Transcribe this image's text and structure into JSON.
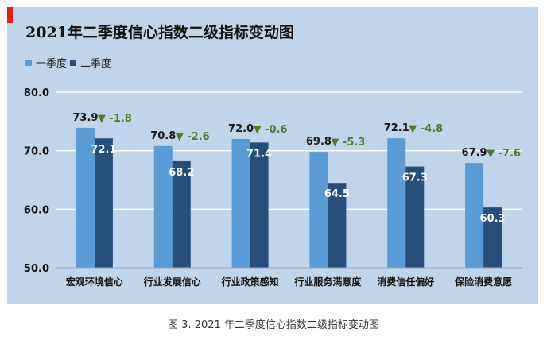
{
  "caption": "图 3. 2021 年二季度信心指数二级指标变动图",
  "colors": {
    "q1": "#5b9bd5",
    "q2": "#264e78",
    "change": "#4e7a2e",
    "grid": "#ffffff",
    "panel": "#bfd5ec"
  },
  "chart_data": {
    "type": "bar",
    "title": "2021年二季度信心指数二级指标变动图",
    "categories": [
      "宏观环境信心",
      "行业发展信心",
      "行业政策感知",
      "行业服务满意度",
      "消费信任偏好",
      "保险消费意愿"
    ],
    "series": [
      {
        "name": "一季度",
        "values": [
          73.9,
          70.8,
          72.0,
          69.8,
          72.1,
          67.9
        ]
      },
      {
        "name": "二季度",
        "values": [
          72.1,
          68.2,
          71.4,
          64.5,
          67.3,
          60.3
        ]
      }
    ],
    "value_labels": {
      "q1": [
        "73.9",
        "70.8",
        "72.0",
        "69.8",
        "72.1",
        "67.9"
      ],
      "q2": [
        "72.1",
        "68.2",
        "71.4",
        "64.5",
        "67.3",
        "60.3"
      ]
    },
    "changes": [
      "-1.8",
      "-2.6",
      "-0.6",
      "-5.3",
      "-4.8",
      "-7.6"
    ],
    "change_marker": "▼",
    "ylim": [
      50,
      80
    ],
    "yticks": [
      "50.0",
      "60.0",
      "70.0",
      "80.0"
    ],
    "legend_position": "top-left",
    "xlabel": "",
    "ylabel": ""
  }
}
